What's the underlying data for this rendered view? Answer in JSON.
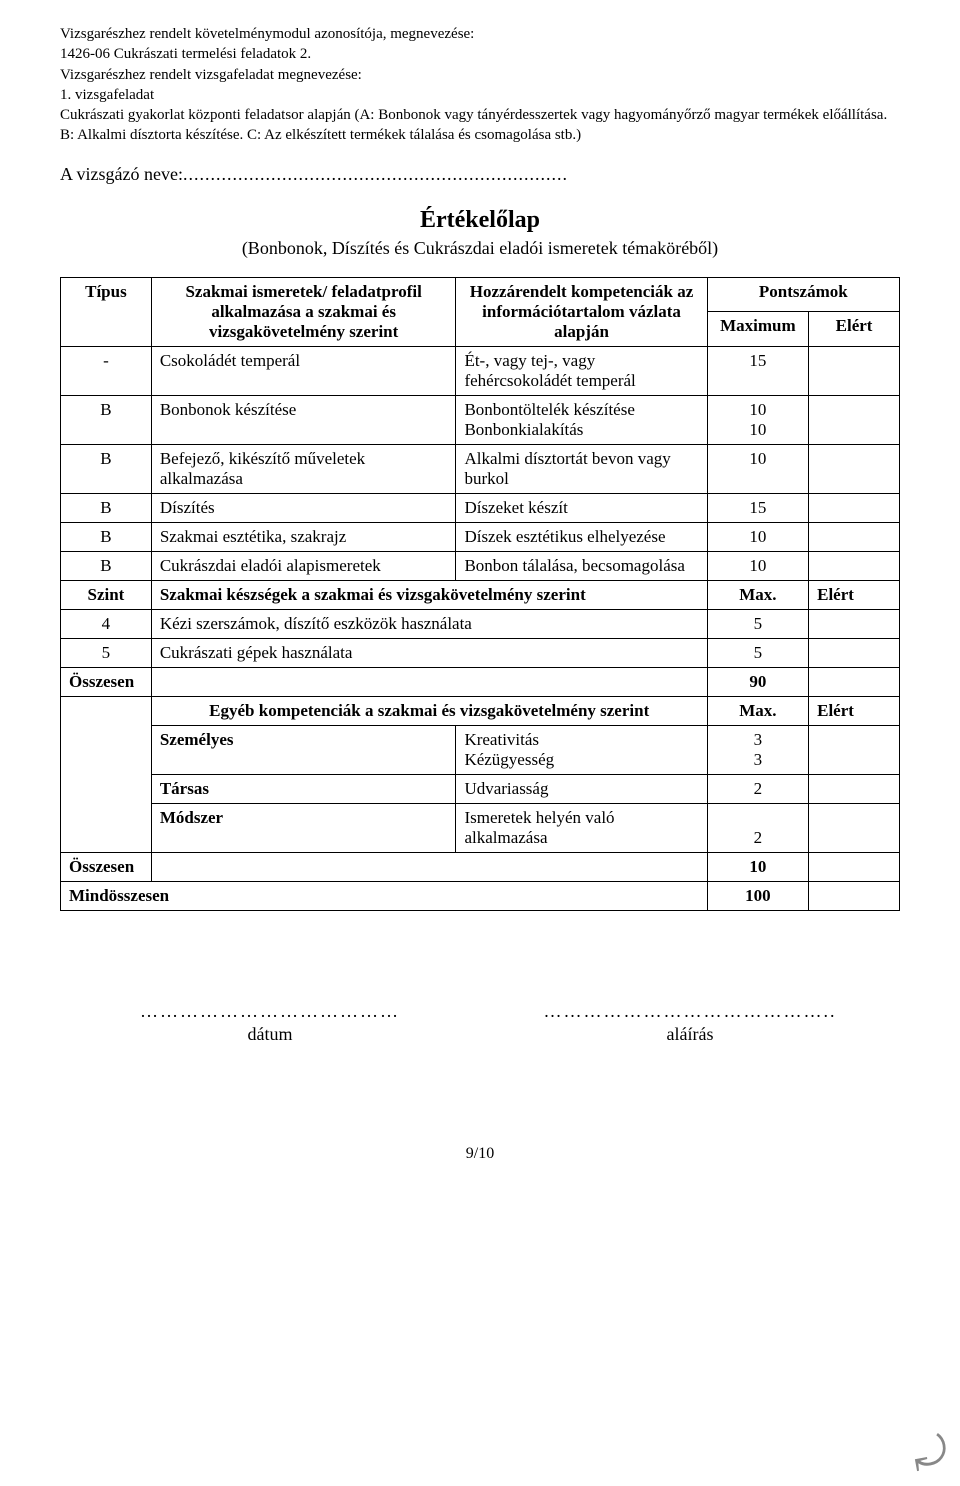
{
  "header": {
    "line1": "Vizsgarészhez rendelt követelménymodul azonosítója, megnevezése:",
    "line2": "1426-06 Cukrászati termelési feladatok 2.",
    "line3": "Vizsgarészhez rendelt vizsgafeladat megnevezése:",
    "line4": "1. vizsgafeladat",
    "line5": "Cukrászati gyakorlat központi feladatsor alapján (A: Bonbonok vagy tányérdesszertek vagy hagyományőrző magyar termékek előállítása. B: Alkalmi dísztorta készítése. C: Az elkészített termékek tálalása és csomagolása stb.)"
  },
  "nameLabel": "A vizsgázó neve:",
  "title": "Értékelőlap",
  "subtitle": "(Bonbonok, Díszítés és Cukrászdai eladói ismeretek témaköréből)",
  "table": {
    "head": {
      "tipus": "Típus",
      "ismeretek": "Szakmai ismeretek/ feladatprofil alkalmazása a szakmai és vizsgakövetelmény szerint",
      "kompetenciak": "Hozzárendelt kompetenciák az információtartalom vázlata alapján",
      "pontszamok": "Pontszámok",
      "max": "Maximum",
      "elert": "Elért"
    },
    "rows": [
      {
        "tip": "-",
        "ism": "Csokoládét temperál",
        "komp": "Ét-, vagy tej-, vagy fehércsokoládét temperál",
        "max": "15"
      },
      {
        "tip": "B",
        "ism": "Bonbonok készítése",
        "komp": "Bonbontöltelék készítése\nBonbonkialakítás",
        "max": "10\n10"
      },
      {
        "tip": "B",
        "ism": "Befejező, kikészítő műveletek alkalmazása",
        "komp": "Alkalmi dísztortát bevon vagy burkol",
        "max": "10"
      },
      {
        "tip": "B",
        "ism": "Díszítés",
        "komp": "Díszeket készít",
        "max": "15"
      },
      {
        "tip": "B",
        "ism": "Szakmai esztétika, szakrajz",
        "komp": "Díszek esztétikus elhelyezése",
        "max": "10"
      },
      {
        "tip": "B",
        "ism": "Cukrászdai eladói alapismeretek",
        "komp": "Bonbon tálalása, becsomagolása",
        "max": "10"
      }
    ],
    "skillsHeader": {
      "szint": "Szint",
      "label": "Szakmai készségek a szakmai és vizsgakövetelmény szerint",
      "max": "Max.",
      "elert": "Elért"
    },
    "skills": [
      {
        "szint": "4",
        "label": "Kézi szerszámok, díszítő eszközök használata",
        "max": "5"
      },
      {
        "szint": "5",
        "label": "Cukrászati gépek használata",
        "max": "5"
      }
    ],
    "osszesen1": {
      "label": "Összesen",
      "val": "90"
    },
    "egyebHeader": {
      "label": "Egyéb kompetenciák a szakmai és vizsgakövetelmény szerint",
      "max": "Max.",
      "elert": "Elért"
    },
    "egyeb": [
      {
        "cat": "Személyes",
        "komp": "Kreativitás\nKézügyesség",
        "max": "3\n3"
      },
      {
        "cat": "Társas",
        "komp": "Udvariasság",
        "max": "2"
      },
      {
        "cat": "Módszer",
        "komp": "Ismeretek helyén való alkalmazása",
        "max": "2"
      }
    ],
    "osszesen2": {
      "label": "Összesen",
      "val": "10"
    },
    "mindossz": {
      "label": "Mindösszesen",
      "val": "100"
    }
  },
  "signatures": {
    "datum": "dátum",
    "alairas": "aláírás"
  },
  "pageNum": "9/10"
}
